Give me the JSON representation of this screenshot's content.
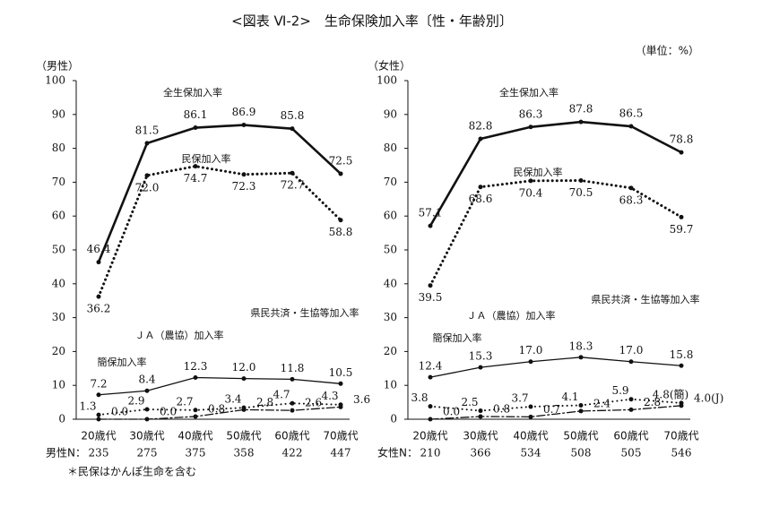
{
  "title": "<図表 Ⅵ-2>　生命保険加入率〔性・年齢別〕",
  "unit_note": "（単位：%）",
  "footnote": "＊民保はかんぽ生命を含む",
  "chart_data": [
    {
      "type": "line",
      "panel_label": "（男性）",
      "categories": [
        "20歳代",
        "30歳代",
        "40歳代",
        "50歳代",
        "60歳代",
        "70歳代"
      ],
      "n_label": "男性N：",
      "n_values": [
        235,
        275,
        375,
        358,
        422,
        447
      ],
      "ylim": [
        0,
        100
      ],
      "yticks": [
        0,
        10,
        20,
        30,
        40,
        50,
        60,
        70,
        80,
        90,
        100
      ],
      "series": [
        {
          "name": "全生保加入率",
          "color": "#111111",
          "style": "solid",
          "width": 2.6,
          "values": [
            46.4,
            81.5,
            86.1,
            86.9,
            85.8,
            72.5
          ]
        },
        {
          "name": "民保加入率",
          "color": "#111111",
          "style": "dotted",
          "width": 3,
          "values": [
            36.2,
            72.0,
            74.7,
            72.3,
            72.7,
            58.8
          ],
          "value_labels": [
            "36.2",
            "72.0",
            "74.7",
            "72.3",
            "72.7",
            "58.8"
          ]
        },
        {
          "name": "県民共済・生協等加入率",
          "color": "#111111",
          "style": "solid",
          "width": 1.3,
          "values": [
            7.2,
            8.4,
            12.3,
            12.0,
            11.8,
            10.5
          ],
          "value_labels": [
            "7.2",
            "8.4",
            "12.3",
            "12.0",
            "11.8",
            "10.5"
          ]
        },
        {
          "name": "簡保加入率",
          "color": "#111111",
          "style": "dotted",
          "width": 2,
          "values": [
            1.3,
            2.9,
            2.7,
            3.4,
            4.7,
            4.3
          ]
        },
        {
          "name": "ＪＡ（農協）加入率",
          "color": "#111111",
          "style": "dashdot",
          "width": 1.3,
          "values": [
            0.0,
            0.0,
            0.8,
            2.8,
            2.6,
            3.6
          ],
          "value_labels": [
            "0.0",
            "0.0",
            "0.8",
            "2.8",
            "2.6",
            "3.6"
          ]
        }
      ]
    },
    {
      "type": "line",
      "panel_label": "（女性）",
      "categories": [
        "20歳代",
        "30歳代",
        "40歳代",
        "50歳代",
        "60歳代",
        "70歳代"
      ],
      "n_label": "女性N：",
      "n_values": [
        210,
        366,
        534,
        508,
        505,
        546
      ],
      "ylim": [
        0,
        100
      ],
      "yticks": [
        0,
        10,
        20,
        30,
        40,
        50,
        60,
        70,
        80,
        90,
        100
      ],
      "series": [
        {
          "name": "全生保加入率",
          "color": "#111111",
          "style": "solid",
          "width": 2.6,
          "values": [
            57.1,
            82.8,
            86.3,
            87.8,
            86.5,
            78.8
          ]
        },
        {
          "name": "民保加入率",
          "color": "#111111",
          "style": "dotted",
          "width": 3,
          "values": [
            39.5,
            68.6,
            70.4,
            70.5,
            68.3,
            59.7
          ]
        },
        {
          "name": "県民共済・生協等加入率",
          "color": "#111111",
          "style": "solid",
          "width": 1.3,
          "values": [
            12.4,
            15.3,
            17.0,
            18.3,
            17.0,
            15.8
          ],
          "value_labels": [
            "12.4",
            "15.3",
            "17.0",
            "18.3",
            "17.0",
            "15.8"
          ]
        },
        {
          "name": "簡保加入率",
          "color": "#111111",
          "style": "dotted",
          "width": 2,
          "values": [
            3.8,
            2.5,
            3.7,
            4.1,
            5.9,
            4.8
          ],
          "value_labels": [
            "3.8",
            "2.5",
            "3.7",
            "4.1",
            "5.9",
            "4.8(簡)"
          ]
        },
        {
          "name": "ＪＡ（農協）加入率",
          "color": "#111111",
          "style": "dashdot",
          "width": 1.3,
          "values": [
            0.0,
            0.8,
            0.7,
            2.4,
            2.8,
            4.0
          ],
          "value_labels": [
            "0.0",
            "0.8",
            "0.7",
            "2.4",
            "2.8",
            "4.0(J)"
          ]
        }
      ]
    }
  ]
}
